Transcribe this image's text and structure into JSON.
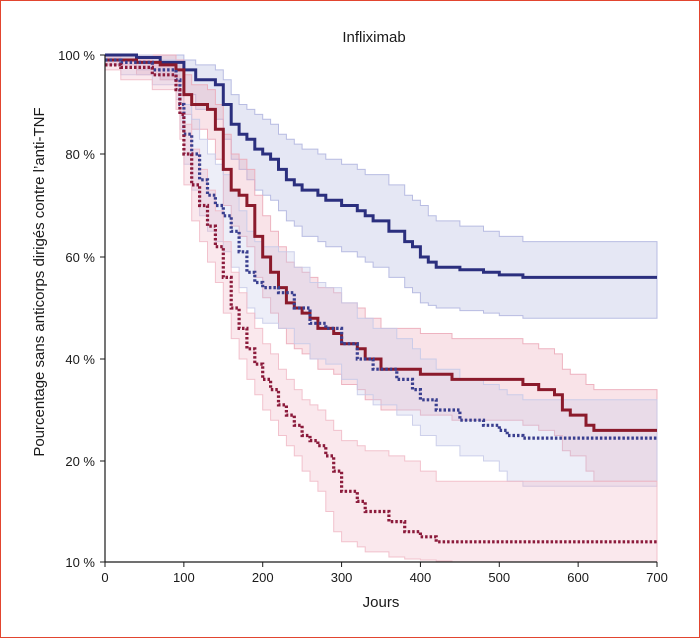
{
  "chart_data": {
    "type": "line",
    "title": "Infliximab",
    "xlabel": "Jours",
    "ylabel": "Pourcentage sans anticorps dirigés contre l’anti-TNF",
    "xlim": [
      0,
      700
    ],
    "ylim": [
      10,
      100
    ],
    "x_ticks": [
      "0",
      "100",
      "200",
      "300",
      "400",
      "500",
      "600",
      "700"
    ],
    "y_ticks": [
      "10 %",
      "20 %",
      "40 %",
      "60 %",
      "80 %",
      "100 %"
    ],
    "y_tick_values": [
      10,
      20,
      40,
      60,
      80,
      100
    ],
    "grid": false,
    "legend": "none",
    "step": true,
    "series": [
      {
        "color": "#2b2f7e",
        "band_color": "#aeb3de",
        "style": "solid",
        "x": [
          0,
          40,
          70,
          100,
          115,
          140,
          150,
          160,
          170,
          180,
          190,
          200,
          210,
          220,
          230,
          240,
          250,
          260,
          270,
          280,
          300,
          320,
          330,
          340,
          360,
          380,
          390,
          400,
          410,
          420,
          450,
          480,
          500,
          530,
          700
        ],
        "y": [
          100,
          99.5,
          98.5,
          97,
          95,
          94,
          90,
          86,
          84,
          83,
          81,
          80,
          79,
          77,
          75,
          74,
          73,
          73,
          72,
          71,
          70,
          69,
          68,
          67,
          65,
          63,
          62,
          60,
          59,
          58,
          57.5,
          57,
          56.5,
          56,
          56
        ],
        "lower": [
          99,
          97,
          95,
          92,
          89,
          87,
          83,
          79,
          77,
          75,
          73,
          72,
          71,
          69,
          67,
          66,
          64,
          64,
          63,
          62,
          61,
          60,
          59,
          58,
          56,
          54,
          53,
          51,
          50.5,
          50,
          49.5,
          49,
          48.5,
          48,
          48
        ],
        "upper": [
          100,
          100,
          100,
          99,
          98,
          97,
          95,
          92,
          90,
          89,
          88,
          87,
          86,
          84,
          83,
          82,
          81,
          81,
          80,
          79,
          78,
          77,
          76,
          76,
          74,
          72,
          71,
          70,
          68,
          67,
          66,
          65,
          64,
          63,
          63
        ]
      },
      {
        "color": "#8b1a2b",
        "band_color": "#eba8b6",
        "style": "solid",
        "x": [
          0,
          40,
          70,
          90,
          100,
          110,
          130,
          140,
          150,
          160,
          170,
          180,
          190,
          200,
          210,
          220,
          230,
          240,
          250,
          260,
          270,
          290,
          300,
          320,
          330,
          350,
          380,
          400,
          420,
          440,
          460,
          480,
          510,
          530,
          550,
          570,
          580,
          590,
          610,
          620,
          700
        ],
        "y": [
          99,
          98.5,
          98,
          97,
          92,
          90,
          89,
          85,
          77,
          73,
          72,
          70,
          64,
          60,
          57,
          54,
          51,
          50,
          49,
          48,
          46,
          45,
          43,
          42,
          40,
          38,
          38,
          37,
          37,
          36,
          36,
          36,
          36,
          35,
          34,
          33,
          30,
          29,
          27,
          26,
          26
        ],
        "lower": [
          98,
          96,
          95,
          94,
          88,
          85,
          83,
          79,
          70,
          66,
          64,
          62,
          56,
          52,
          49,
          46,
          43,
          42,
          41,
          40,
          38,
          37,
          35,
          34,
          32,
          30,
          30,
          29,
          29,
          28,
          28,
          28,
          28,
          27,
          26,
          25,
          22,
          21,
          19,
          18,
          18
        ],
        "upper": [
          100,
          100,
          100,
          99,
          96,
          94,
          93,
          90,
          84,
          80,
          79,
          77,
          72,
          68,
          65,
          62,
          59,
          58,
          57,
          56,
          54,
          53,
          51,
          50,
          48,
          46,
          46,
          45,
          45,
          44,
          44,
          44,
          44,
          43,
          42,
          41,
          38,
          37,
          35,
          34,
          34
        ]
      },
      {
        "color": "#3a3f8f",
        "band_color": "#c6c9e8",
        "style": "dotted",
        "x": [
          0,
          20,
          60,
          90,
          95,
          100,
          110,
          120,
          130,
          140,
          150,
          160,
          170,
          180,
          190,
          200,
          220,
          240,
          260,
          280,
          300,
          320,
          340,
          370,
          380,
          390,
          400,
          420,
          450,
          480,
          500,
          510,
          530,
          700
        ],
        "y": [
          99,
          98.5,
          97,
          95,
          90,
          84,
          80,
          75,
          72,
          70,
          68,
          65,
          61,
          57,
          55,
          54,
          53,
          50,
          47,
          46,
          43,
          40,
          38,
          36,
          36,
          34,
          32,
          30,
          28,
          27,
          26,
          25,
          24.5,
          24.5
        ],
        "lower": [
          98,
          96,
          94,
          91,
          85,
          78,
          73,
          68,
          65,
          63,
          61,
          58,
          54,
          50,
          48,
          47,
          46,
          43,
          40,
          39,
          36,
          33,
          31,
          29,
          29,
          27,
          25,
          23,
          21,
          20,
          19,
          18,
          17.5,
          17.5
        ],
        "upper": [
          100,
          100,
          99,
          98,
          95,
          90,
          87,
          83,
          80,
          78,
          76,
          73,
          69,
          65,
          63,
          62,
          61,
          58,
          55,
          54,
          51,
          48,
          46,
          44,
          44,
          42,
          40,
          38,
          36,
          35,
          34,
          33,
          32,
          32
        ]
      },
      {
        "color": "#8b1a3b",
        "band_color": "#f0b8c6",
        "style": "dotted",
        "x": [
          0,
          20,
          60,
          90,
          95,
          100,
          110,
          120,
          130,
          140,
          150,
          160,
          170,
          180,
          190,
          200,
          210,
          220,
          230,
          240,
          250,
          260,
          270,
          280,
          290,
          300,
          320,
          330,
          360,
          380,
          400,
          420,
          440,
          700
        ],
        "y": [
          98,
          97.5,
          96,
          93,
          88,
          80,
          74,
          70,
          66,
          62,
          56,
          50,
          46,
          42,
          39,
          36,
          34,
          31,
          29,
          27,
          25,
          24,
          23,
          21,
          19,
          17,
          16,
          15,
          14,
          13,
          12.5,
          12,
          12,
          12
        ],
        "lower": [
          97,
          95,
          93,
          89,
          83,
          74,
          67,
          63,
          59,
          55,
          49,
          44,
          40,
          36,
          33,
          30,
          28,
          25,
          23,
          21,
          19,
          18,
          17,
          15,
          13,
          12,
          11.5,
          11,
          10.5,
          10.3,
          10.2,
          10.1,
          10,
          10
        ],
        "upper": [
          100,
          99,
          98,
          96,
          93,
          86,
          81,
          77,
          73,
          69,
          63,
          57,
          53,
          49,
          46,
          43,
          41,
          38,
          36,
          34,
          32,
          31,
          30,
          28,
          26,
          24,
          23,
          22,
          21,
          20,
          19,
          18,
          18,
          18
        ]
      }
    ]
  }
}
